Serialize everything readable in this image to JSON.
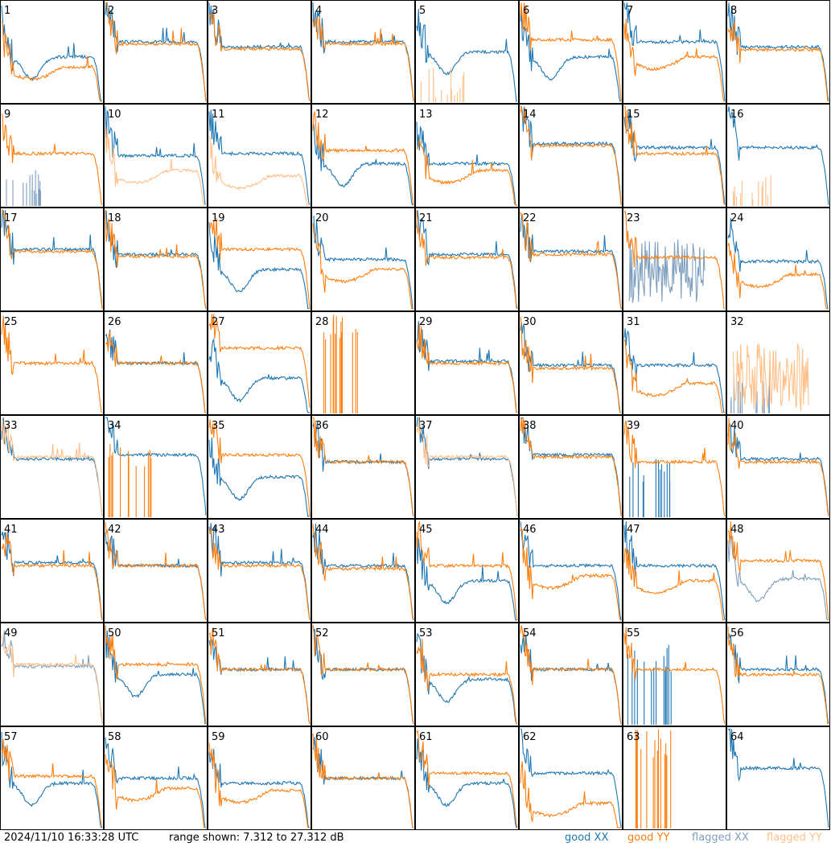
{
  "timestamp": "2024/11/10 16:33:28 UTC",
  "range_label": "range shown: 7.312 to 27.312 dB",
  "legend": {
    "good_xx": "good XX",
    "good_yy": "good YY",
    "flagged_xx": "flagged XX",
    "flagged_yy": "flagged YY"
  },
  "colors": {
    "good_xx": "#1f77b4",
    "good_yy": "#ff7f0e",
    "flagged_xx": "#7f9fbf",
    "flagged_yy": "#ffc08a"
  },
  "chart_data": {
    "type": "line",
    "layout": {
      "columns": 8,
      "rows": 8
    },
    "ylim": [
      7.312,
      27.312
    ],
    "y_unit": "dB",
    "panels": [
      {
        "id": "1",
        "xx": "sag",
        "yy": "dip",
        "xx_flagged": false,
        "yy_flagged": false,
        "xx_level": 0.45,
        "yy_level": 0.35
      },
      {
        "id": "2",
        "xx": "flat",
        "yy": "flat",
        "xx_flagged": false,
        "yy_flagged": false,
        "xx_level": 0.6,
        "yy_level": 0.58
      },
      {
        "id": "3",
        "xx": "flat",
        "yy": "flat",
        "xx_flagged": false,
        "yy_flagged": false,
        "xx_level": 0.55,
        "yy_level": 0.53
      },
      {
        "id": "4",
        "xx": "flat",
        "yy": "flat",
        "xx_flagged": false,
        "yy_flagged": false,
        "xx_level": 0.6,
        "yy_level": 0.58
      },
      {
        "id": "5",
        "xx": "sag",
        "yy": "spikes",
        "xx_flagged": false,
        "yy_flagged": true,
        "xx_level": 0.5,
        "yy_level": 0.05
      },
      {
        "id": "6",
        "xx": "sag",
        "yy": "flat",
        "xx_flagged": false,
        "yy_flagged": false,
        "xx_level": 0.45,
        "yy_level": 0.62
      },
      {
        "id": "7",
        "xx": "flat",
        "yy": "dip",
        "xx_flagged": false,
        "yy_flagged": false,
        "xx_level": 0.6,
        "yy_level": 0.45
      },
      {
        "id": "8",
        "xx": "flat",
        "yy": "flat",
        "xx_flagged": false,
        "yy_flagged": false,
        "xx_level": 0.55,
        "yy_level": 0.52
      },
      {
        "id": "9",
        "xx": "spikes",
        "yy": "flat",
        "xx_flagged": true,
        "yy_flagged": false,
        "xx_level": 0.1,
        "yy_level": 0.52
      },
      {
        "id": "10",
        "xx": "flat",
        "yy": "dip",
        "xx_flagged": false,
        "yy_flagged": true,
        "xx_level": 0.5,
        "yy_level": 0.35
      },
      {
        "id": "11",
        "xx": "flat",
        "yy": "dip",
        "xx_flagged": false,
        "yy_flagged": true,
        "xx_level": 0.52,
        "yy_level": 0.3
      },
      {
        "id": "12",
        "xx": "sag",
        "yy": "flat",
        "xx_flagged": false,
        "yy_flagged": false,
        "xx_level": 0.42,
        "yy_level": 0.55
      },
      {
        "id": "13",
        "xx": "flat",
        "yy": "dip",
        "xx_flagged": false,
        "yy_flagged": false,
        "xx_level": 0.42,
        "yy_level": 0.35
      },
      {
        "id": "14",
        "xx": "flat",
        "yy": "flat",
        "xx_flagged": false,
        "yy_flagged": false,
        "xx_level": 0.62,
        "yy_level": 0.6
      },
      {
        "id": "15",
        "xx": "flat",
        "yy": "flat",
        "xx_flagged": false,
        "yy_flagged": false,
        "xx_level": 0.58,
        "yy_level": 0.52
      },
      {
        "id": "16",
        "xx": "flat",
        "yy": "spikes",
        "xx_flagged": false,
        "yy_flagged": true,
        "xx_level": 0.58,
        "yy_level": 0.05
      },
      {
        "id": "17",
        "xx": "flat",
        "yy": "flat",
        "xx_flagged": false,
        "yy_flagged": false,
        "xx_level": 0.6,
        "yy_level": 0.58
      },
      {
        "id": "18",
        "xx": "flat",
        "yy": "flat",
        "xx_flagged": false,
        "yy_flagged": false,
        "xx_level": 0.55,
        "yy_level": 0.53
      },
      {
        "id": "19",
        "xx": "sag",
        "yy": "flat",
        "xx_flagged": false,
        "yy_flagged": false,
        "xx_level": 0.4,
        "yy_level": 0.6
      },
      {
        "id": "20",
        "xx": "flat",
        "yy": "dip",
        "xx_flagged": false,
        "yy_flagged": false,
        "xx_level": 0.5,
        "yy_level": 0.4
      },
      {
        "id": "21",
        "xx": "flat",
        "yy": "flat",
        "xx_flagged": false,
        "yy_flagged": false,
        "xx_level": 0.55,
        "yy_level": 0.52
      },
      {
        "id": "22",
        "xx": "flat",
        "yy": "flat",
        "xx_flagged": false,
        "yy_flagged": false,
        "xx_level": 0.58,
        "yy_level": 0.55
      },
      {
        "id": "23",
        "xx": "noise",
        "yy": "flat",
        "xx_flagged": true,
        "yy_flagged": false,
        "xx_level": 0.4,
        "yy_level": 0.52
      },
      {
        "id": "24",
        "xx": "flat",
        "yy": "dip",
        "xx_flagged": false,
        "yy_flagged": false,
        "xx_level": 0.48,
        "yy_level": 0.35
      },
      {
        "id": "25",
        "xx": "none",
        "yy": "flat",
        "xx_flagged": false,
        "yy_flagged": false,
        "xx_level": 0,
        "yy_level": 0.5
      },
      {
        "id": "26",
        "xx": "flat",
        "yy": "flat",
        "xx_flagged": false,
        "yy_flagged": false,
        "xx_level": 0.5,
        "yy_level": 0.5
      },
      {
        "id": "27",
        "xx": "sag",
        "yy": "flat",
        "xx_flagged": false,
        "yy_flagged": false,
        "xx_level": 0.35,
        "yy_level": 0.65
      },
      {
        "id": "28",
        "xx": "none",
        "yy": "spikes",
        "xx_flagged": false,
        "yy_flagged": false,
        "xx_level": 0,
        "yy_level": 0.7
      },
      {
        "id": "29",
        "xx": "flat",
        "yy": "flat",
        "xx_flagged": false,
        "yy_flagged": false,
        "xx_level": 0.52,
        "yy_level": 0.5
      },
      {
        "id": "30",
        "xx": "flat",
        "yy": "flat",
        "xx_flagged": false,
        "yy_flagged": false,
        "xx_level": 0.48,
        "yy_level": 0.45
      },
      {
        "id": "31",
        "xx": "flat",
        "yy": "dip",
        "xx_flagged": false,
        "yy_flagged": false,
        "xx_level": 0.48,
        "yy_level": 0.3
      },
      {
        "id": "32",
        "xx": "spikes",
        "yy": "noise",
        "xx_flagged": true,
        "yy_flagged": true,
        "xx_level": 0.12,
        "yy_level": 0.4
      },
      {
        "id": "33",
        "xx": "flat",
        "yy": "flat",
        "xx_flagged": false,
        "yy_flagged": true,
        "xx_level": 0.58,
        "yy_level": 0.6
      },
      {
        "id": "34",
        "xx": "flat",
        "yy": "spikes",
        "xx_flagged": false,
        "yy_flagged": false,
        "xx_level": 0.62,
        "yy_level": 0.5
      },
      {
        "id": "35",
        "xx": "sag",
        "yy": "flat",
        "xx_flagged": false,
        "yy_flagged": false,
        "xx_level": 0.4,
        "yy_level": 0.62
      },
      {
        "id": "36",
        "xx": "flat",
        "yy": "flat",
        "xx_flagged": false,
        "yy_flagged": false,
        "xx_level": 0.55,
        "yy_level": 0.55
      },
      {
        "id": "37",
        "xx": "flat",
        "yy": "flat",
        "xx_flagged": false,
        "yy_flagged": true,
        "xx_level": 0.58,
        "yy_level": 0.6
      },
      {
        "id": "38",
        "xx": "flat",
        "yy": "flat",
        "xx_flagged": false,
        "yy_flagged": false,
        "xx_level": 0.62,
        "yy_level": 0.6
      },
      {
        "id": "39",
        "xx": "spikes",
        "yy": "flat",
        "xx_flagged": false,
        "yy_flagged": false,
        "xx_level": 0.3,
        "yy_level": 0.55
      },
      {
        "id": "40",
        "xx": "flat",
        "yy": "flat",
        "xx_flagged": false,
        "yy_flagged": false,
        "xx_level": 0.58,
        "yy_level": 0.55
      },
      {
        "id": "41",
        "xx": "flat",
        "yy": "flat",
        "xx_flagged": false,
        "yy_flagged": false,
        "xx_level": 0.58,
        "yy_level": 0.55
      },
      {
        "id": "42",
        "xx": "flat",
        "yy": "flat",
        "xx_flagged": false,
        "yy_flagged": false,
        "xx_level": 0.55,
        "yy_level": 0.55
      },
      {
        "id": "43",
        "xx": "flat",
        "yy": "flat",
        "xx_flagged": false,
        "yy_flagged": false,
        "xx_level": 0.58,
        "yy_level": 0.55
      },
      {
        "id": "44",
        "xx": "flat",
        "yy": "flat",
        "xx_flagged": false,
        "yy_flagged": false,
        "xx_level": 0.55,
        "yy_level": 0.52
      },
      {
        "id": "45",
        "xx": "sag",
        "yy": "flat",
        "xx_flagged": false,
        "yy_flagged": false,
        "xx_level": 0.4,
        "yy_level": 0.55
      },
      {
        "id": "46",
        "xx": "flat",
        "yy": "dip",
        "xx_flagged": false,
        "yy_flagged": false,
        "xx_level": 0.55,
        "yy_level": 0.45
      },
      {
        "id": "47",
        "xx": "flat",
        "yy": "dip",
        "xx_flagged": false,
        "yy_flagged": false,
        "xx_level": 0.55,
        "yy_level": 0.4
      },
      {
        "id": "48",
        "xx": "sag",
        "yy": "flat",
        "xx_flagged": true,
        "yy_flagged": false,
        "xx_level": 0.42,
        "yy_level": 0.6
      },
      {
        "id": "49",
        "xx": "flat",
        "yy": "flat",
        "xx_flagged": true,
        "yy_flagged": true,
        "xx_level": 0.58,
        "yy_level": 0.6
      },
      {
        "id": "50",
        "xx": "sag",
        "yy": "flat",
        "xx_flagged": false,
        "yy_flagged": false,
        "xx_level": 0.5,
        "yy_level": 0.6
      },
      {
        "id": "51",
        "xx": "flat",
        "yy": "flat",
        "xx_flagged": false,
        "yy_flagged": false,
        "xx_level": 0.55,
        "yy_level": 0.55
      },
      {
        "id": "52",
        "xx": "flat",
        "yy": "flat",
        "xx_flagged": false,
        "yy_flagged": false,
        "xx_level": 0.55,
        "yy_level": 0.55
      },
      {
        "id": "53",
        "xx": "sag",
        "yy": "flat",
        "xx_flagged": false,
        "yy_flagged": false,
        "xx_level": 0.45,
        "yy_level": 0.5
      },
      {
        "id": "54",
        "xx": "flat",
        "yy": "flat",
        "xx_flagged": false,
        "yy_flagged": false,
        "xx_level": 0.55,
        "yy_level": 0.55
      },
      {
        "id": "55",
        "xx": "spikes",
        "yy": "flat",
        "xx_flagged": false,
        "yy_flagged": false,
        "xx_level": 0.5,
        "yy_level": 0.55
      },
      {
        "id": "56",
        "xx": "flat",
        "yy": "flat",
        "xx_flagged": false,
        "yy_flagged": false,
        "xx_level": 0.55,
        "yy_level": 0.5
      },
      {
        "id": "57",
        "xx": "sag",
        "yy": "flat",
        "xx_flagged": false,
        "yy_flagged": false,
        "xx_level": 0.45,
        "yy_level": 0.52
      },
      {
        "id": "58",
        "xx": "flat",
        "yy": "dip",
        "xx_flagged": false,
        "yy_flagged": false,
        "xx_level": 0.5,
        "yy_level": 0.4
      },
      {
        "id": "59",
        "xx": "flat",
        "yy": "dip",
        "xx_flagged": false,
        "yy_flagged": false,
        "xx_level": 0.45,
        "yy_level": 0.38
      },
      {
        "id": "60",
        "xx": "flat",
        "yy": "flat",
        "xx_flagged": false,
        "yy_flagged": false,
        "xx_level": 0.5,
        "yy_level": 0.5
      },
      {
        "id": "61",
        "xx": "sag",
        "yy": "flat",
        "xx_flagged": false,
        "yy_flagged": false,
        "xx_level": 0.45,
        "yy_level": 0.55
      },
      {
        "id": "62",
        "xx": "flat",
        "yy": "dip",
        "xx_flagged": false,
        "yy_flagged": false,
        "xx_level": 0.55,
        "yy_level": 0.25
      },
      {
        "id": "63",
        "xx": "none",
        "yy": "spikes",
        "xx_flagged": false,
        "yy_flagged": false,
        "xx_level": 0,
        "yy_level": 0.7
      },
      {
        "id": "64",
        "xx": "flat",
        "yy": "none",
        "xx_flagged": false,
        "yy_flagged": false,
        "xx_level": 0.6,
        "yy_level": 0
      }
    ]
  }
}
